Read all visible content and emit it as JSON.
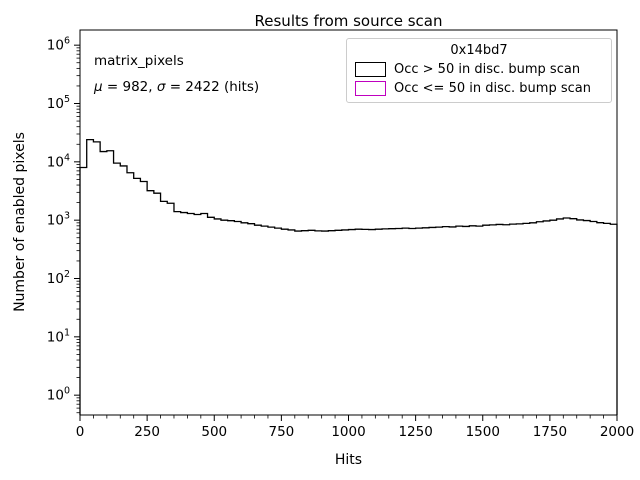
{
  "title": "Results from source scan",
  "xlabel": "Hits",
  "ylabel": "Number of enabled pixels",
  "annotation": {
    "line1": "matrix_pixels",
    "mu_label": "μ",
    "mu_value": " = 982, ",
    "sigma_label": "σ",
    "sigma_value": " = 2422 (hits)"
  },
  "legend": {
    "title": "0x14bd7",
    "entries": [
      {
        "label": "Occ > 50 in disc. bump scan",
        "color": "#000000"
      },
      {
        "label": "Occ <= 50 in disc. bump scan",
        "color": "#bf00bf"
      }
    ]
  },
  "chart_data": {
    "type": "bar",
    "subtype": "step-histogram",
    "title": "Results from source scan",
    "xlabel": "Hits",
    "ylabel": "Number of enabled pixels",
    "yscale": "log",
    "grid": false,
    "legend_position": "upper right",
    "xlim": [
      0,
      2000
    ],
    "ylog_range": [
      -0.34,
      6.26
    ],
    "xticks": [
      0,
      250,
      500,
      750,
      1000,
      1250,
      1500,
      1750,
      2000
    ],
    "x_minor_step": 50,
    "yticks_exponents": [
      0,
      1,
      2,
      3,
      4,
      5,
      6
    ],
    "bin_start": 0,
    "bin_width": 25,
    "series": [
      {
        "name": "Occ > 50 in disc. bump scan",
        "color": "#000000",
        "counts": [
          8000,
          24000,
          22000,
          15000,
          15500,
          9500,
          8500,
          6500,
          5200,
          4600,
          3200,
          2900,
          2100,
          1950,
          1400,
          1350,
          1300,
          1250,
          1300,
          1120,
          1050,
          1000,
          980,
          950,
          900,
          870,
          820,
          790,
          760,
          730,
          700,
          680,
          650,
          660,
          670,
          655,
          650,
          660,
          670,
          680,
          690,
          700,
          695,
          690,
          700,
          710,
          715,
          720,
          730,
          720,
          730,
          740,
          750,
          760,
          775,
          765,
          790,
          780,
          800,
          790,
          820,
          830,
          845,
          835,
          855,
          865,
          880,
          900,
          940,
          970,
          1000,
          1050,
          1090,
          1060,
          1010,
          985,
          950,
          905,
          880,
          850
        ]
      },
      {
        "name": "Occ <= 50 in disc. bump scan",
        "color": "#bf00bf",
        "counts": []
      }
    ],
    "stats": {
      "mu_hits": 982,
      "sigma_hits": 2422
    }
  }
}
